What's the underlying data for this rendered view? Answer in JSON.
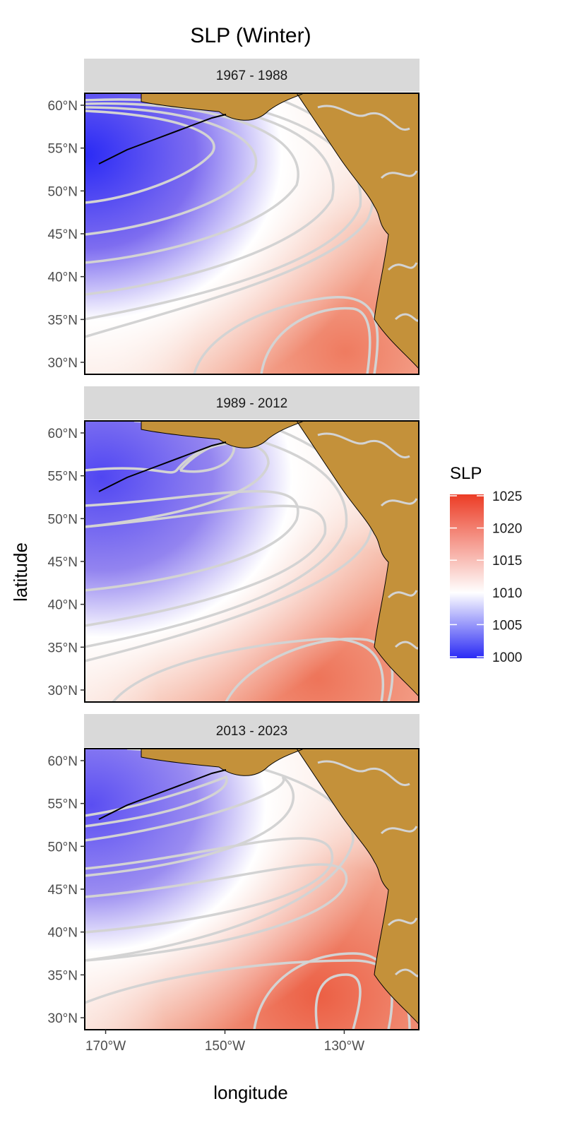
{
  "title": "SLP (Winter)",
  "x_axis": {
    "label": "longitude",
    "ticks": [
      {
        "value": -170,
        "label": "170°W"
      },
      {
        "value": -150,
        "label": "150°W"
      },
      {
        "value": -130,
        "label": "130°W"
      }
    ],
    "range": [
      -173.5,
      -117.5
    ]
  },
  "y_axis": {
    "label": "latitude",
    "ticks": [
      {
        "value": 60,
        "label": "60°N"
      },
      {
        "value": 55,
        "label": "55°N"
      },
      {
        "value": 50,
        "label": "50°N"
      },
      {
        "value": 45,
        "label": "45°N"
      },
      {
        "value": 40,
        "label": "40°N"
      },
      {
        "value": 35,
        "label": "35°N"
      },
      {
        "value": 30,
        "label": "30°N"
      }
    ],
    "range": [
      28.6,
      61.4
    ]
  },
  "panels": [
    {
      "label": "1967 - 1988",
      "low": {
        "lon": -173,
        "lat": 55,
        "value": 1000.5
      },
      "high": {
        "lon": -133,
        "lat": 31,
        "value": 1021
      }
    },
    {
      "label": "1989 - 2012",
      "low": {
        "lon": -168,
        "lat": 56,
        "value": 1003
      },
      "high": {
        "lon": -135,
        "lat": 31,
        "value": 1021.5
      }
    },
    {
      "label": "2013 - 2023",
      "low": {
        "lon": -170,
        "lat": 56,
        "value": 1004
      },
      "high": {
        "lon": -134,
        "lat": 32,
        "value": 1022.5
      }
    }
  ],
  "legend": {
    "title": "SLP",
    "ticks": [
      1025,
      1020,
      1015,
      1010,
      1005,
      1000
    ],
    "range": [
      1000,
      1025
    ],
    "colors": {
      "low": "#2a2af5",
      "mid": "#ffffff",
      "high": "#ec3c25"
    }
  },
  "colors": {
    "land": "#c4913a",
    "contour": "#d3d3d3",
    "strip": "#d9d9d9"
  }
}
